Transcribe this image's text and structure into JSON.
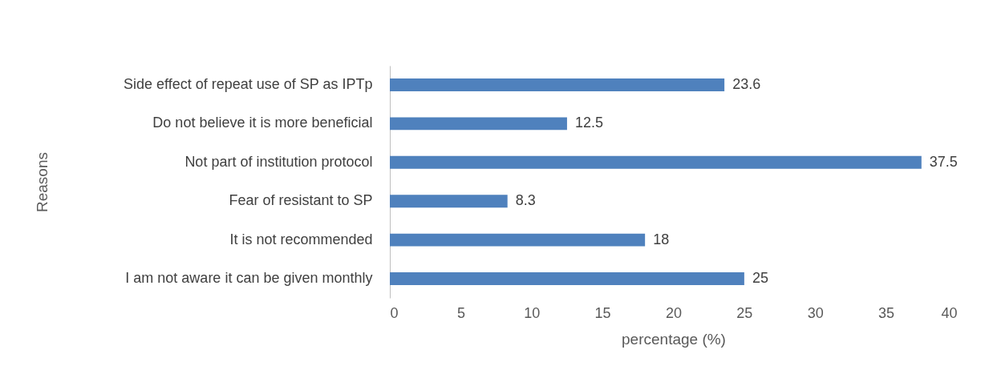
{
  "chart_data": {
    "type": "bar",
    "orientation": "horizontal",
    "xlabel": "percentage (%)",
    "ylabel": "Reasons",
    "categories": [
      "Side effect of repeat use of SP as IPTp",
      "Do not believe it is more beneficial",
      "Not part of institution protocol",
      "Fear of resistant to SP",
      "It is not recommended",
      "I am not aware it can be given monthly"
    ],
    "values": [
      23.6,
      12.5,
      37.5,
      8.3,
      18,
      25
    ],
    "color": "#4f81bd",
    "xlim": [
      0,
      40
    ],
    "xticks": [
      0,
      5,
      10,
      15,
      20,
      25,
      30,
      35,
      40
    ],
    "data_labels": true,
    "grid": false
  }
}
